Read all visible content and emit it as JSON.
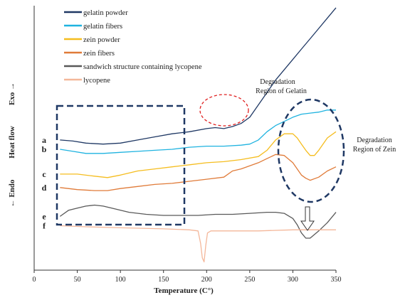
{
  "chart_data": {
    "type": "line",
    "xlabel": "Temperature (C°)",
    "ylabel": {
      "endo": "← Endo",
      "heat_flow": "Heat flow",
      "exo": "Exo →"
    },
    "xlim": [
      0,
      350
    ],
    "xticks": [
      "0",
      "50",
      "100",
      "150",
      "200",
      "250",
      "300",
      "350"
    ],
    "legend_position": "top-left",
    "series": [
      {
        "name": "gelatin powder",
        "curve_label": "a",
        "color": "#1f3864",
        "x": [
          30,
          45,
          60,
          80,
          100,
          120,
          140,
          160,
          180,
          200,
          210,
          220,
          230,
          240,
          250,
          260,
          270,
          280,
          290,
          300,
          310,
          320,
          330,
          340,
          350
        ],
        "y": [
          55,
          54.5,
          53.5,
          53,
          53.5,
          55,
          56.5,
          58,
          59,
          60.5,
          61,
          60.5,
          61.5,
          63,
          66,
          72,
          78,
          84,
          89,
          94,
          99,
          104,
          109,
          114,
          119
        ]
      },
      {
        "name": "gelatin fibers",
        "curve_label": "b",
        "color": "#1fb3e0",
        "x": [
          30,
          45,
          60,
          80,
          100,
          120,
          140,
          160,
          180,
          200,
          220,
          240,
          250,
          260,
          270,
          280,
          290,
          300,
          310,
          320,
          330,
          340,
          350
        ],
        "y": [
          50.5,
          49.5,
          48.5,
          48.5,
          49,
          49.5,
          50,
          50.5,
          51.5,
          52,
          52,
          52.5,
          53,
          55,
          59,
          62,
          64,
          66,
          67.5,
          68,
          68.5,
          69.5,
          69.5
        ]
      },
      {
        "name": "zein powder",
        "curve_label": "c",
        "color": "#f5bd1f",
        "x": [
          30,
          50,
          70,
          85,
          100,
          120,
          140,
          160,
          180,
          200,
          220,
          240,
          260,
          270,
          280,
          290,
          300,
          305,
          310,
          315,
          320,
          325,
          330,
          335,
          340,
          350
        ],
        "y": [
          38.5,
          38.5,
          37.5,
          36.8,
          38,
          40,
          41,
          42,
          43,
          44,
          44.5,
          45.5,
          47,
          50,
          55,
          58,
          58,
          56,
          53,
          50,
          47.5,
          47.5,
          50,
          53,
          56,
          59
        ]
      },
      {
        "name": "zein fibers",
        "curve_label": "d",
        "color": "#e07b39",
        "x": [
          30,
          50,
          70,
          85,
          100,
          120,
          140,
          160,
          180,
          200,
          220,
          230,
          240,
          260,
          270,
          280,
          290,
          300,
          305,
          310,
          315,
          320,
          330,
          340,
          350
        ],
        "y": [
          32,
          31,
          30.5,
          30.5,
          31.5,
          32.5,
          33.5,
          34,
          35,
          36,
          37,
          40,
          41,
          44,
          46,
          48,
          47.5,
          44,
          41,
          38,
          36.5,
          35.5,
          37,
          40,
          42
        ]
      },
      {
        "name": "sandwich structure containing lycopene",
        "curve_label": "e",
        "color": "#595959",
        "x": [
          30,
          40,
          50,
          60,
          70,
          80,
          90,
          110,
          130,
          150,
          170,
          190,
          210,
          230,
          250,
          270,
          280,
          290,
          300,
          305,
          310,
          315,
          320,
          330,
          340,
          350
        ],
        "y": [
          18,
          21,
          22,
          23,
          23.5,
          23,
          22,
          20,
          19,
          18.5,
          18.5,
          18.5,
          19,
          19,
          19.5,
          20,
          20,
          19.5,
          17,
          14,
          10,
          7.5,
          7.5,
          11,
          15,
          20
        ]
      },
      {
        "name": "lycopene",
        "curve_label": "f",
        "color": "#f4b79a",
        "x": [
          30,
          60,
          100,
          150,
          180,
          190,
          193,
          195,
          197,
          199,
          201,
          205,
          220,
          260,
          300,
          350
        ],
        "y": [
          13.5,
          13,
          12.5,
          12,
          11.5,
          11,
          5,
          -2,
          -4,
          4,
          10,
          11,
          11,
          11,
          11.5,
          11.5
        ]
      }
    ],
    "annotations": {
      "gelatin_region": [
        "Degradation",
        "Region of Gelatin"
      ],
      "zein_region": [
        "Degradation",
        "Region of Zein"
      ]
    }
  }
}
